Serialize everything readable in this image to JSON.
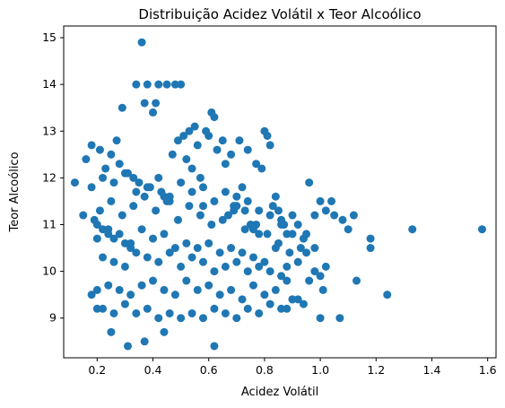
{
  "chart_data": {
    "type": "scatter",
    "title": "Distribuição Acidez Volátil x Teor Alcoólico",
    "xlabel": "Acidez Volátil",
    "ylabel": "Teor Alcoólico",
    "xlim": [
      0.08,
      1.63
    ],
    "ylim": [
      8.15,
      15.25
    ],
    "xticks": [
      0.2,
      0.4,
      0.6,
      0.8,
      1.0,
      1.2,
      1.4,
      1.6
    ],
    "xtick_labels": [
      "0.2",
      "0.4",
      "0.6",
      "0.8",
      "1.0",
      "1.2",
      "1.4",
      "1.6"
    ],
    "yticks": [
      9,
      10,
      11,
      12,
      13,
      14,
      15
    ],
    "ytick_labels": [
      "9",
      "10",
      "11",
      "12",
      "13",
      "14",
      "15"
    ],
    "grid": false,
    "marker_color": "#1f77b4",
    "series": [
      {
        "x": [
          0.36,
          0.34,
          0.38,
          0.42,
          0.45,
          0.48,
          0.5,
          0.37,
          0.41,
          0.4,
          0.29,
          0.61,
          0.62,
          0.65,
          0.6,
          0.63,
          0.59,
          0.55,
          0.53,
          0.51,
          0.56,
          0.49,
          0.47,
          0.52,
          0.54,
          0.57,
          0.66,
          0.68,
          0.71,
          0.74,
          0.8,
          0.81,
          0.82,
          0.77,
          0.79,
          0.18,
          0.16,
          0.21,
          0.23,
          0.25,
          0.27,
          0.28,
          0.31,
          0.33,
          0.35,
          0.39,
          0.43,
          0.44,
          0.46,
          0.58,
          0.12,
          0.15,
          0.19,
          0.2,
          0.22,
          0.24,
          0.26,
          0.3,
          0.32,
          0.67,
          0.69,
          0.7,
          0.72,
          0.73,
          0.75,
          0.76,
          0.78,
          0.83,
          0.84,
          0.85,
          0.86,
          0.87,
          0.88,
          0.9,
          0.92,
          0.95,
          0.96,
          0.98,
          1.0,
          1.02,
          1.04,
          1.05,
          1.08,
          1.1,
          1.12,
          1.18,
          1.33,
          1.58,
          1.18,
          0.96,
          0.98,
          1.0,
          1.02,
          1.01,
          0.95,
          0.92,
          0.9,
          0.88,
          1.13,
          1.24,
          1.07,
          1.0,
          0.62,
          0.31,
          0.37,
          0.44,
          0.25,
          0.2,
          0.18,
          0.22,
          0.26,
          0.3,
          0.34,
          0.38,
          0.42,
          0.46,
          0.5,
          0.54,
          0.58,
          0.62,
          0.66,
          0.7,
          0.74,
          0.78,
          0.82,
          0.86,
          0.9,
          0.94,
          0.2,
          0.24,
          0.28,
          0.32,
          0.36,
          0.4,
          0.44,
          0.48,
          0.52,
          0.56,
          0.6,
          0.64,
          0.68,
          0.72,
          0.76,
          0.8,
          0.84,
          0.88,
          0.92,
          0.22,
          0.26,
          0.3,
          0.34,
          0.38,
          0.42,
          0.46,
          0.5,
          0.54,
          0.58,
          0.62,
          0.66,
          0.7,
          0.74,
          0.78,
          0.82,
          0.86,
          0.2,
          0.24,
          0.28,
          0.32,
          0.36,
          0.4,
          0.44,
          0.48,
          0.52,
          0.56,
          0.6,
          0.64,
          0.68,
          0.72,
          0.76,
          0.8,
          0.84,
          0.88,
          0.21,
          0.25,
          0.29,
          0.33,
          0.37,
          0.41,
          0.45,
          0.49,
          0.53,
          0.57,
          0.61,
          0.65,
          0.69,
          0.73,
          0.77,
          0.81,
          0.85,
          0.89,
          0.93,
          0.18,
          0.22,
          0.26,
          0.3,
          0.34,
          0.38,
          0.42,
          0.46,
          0.5,
          0.54,
          0.58,
          0.62,
          0.66,
          0.7,
          0.74,
          0.78,
          0.82,
          0.86,
          0.9,
          0.94,
          0.98
        ],
        "y": [
          14.9,
          14.0,
          14.0,
          14.0,
          14.0,
          14.0,
          14.0,
          13.6,
          13.6,
          13.4,
          13.5,
          13.4,
          13.3,
          12.8,
          12.9,
          12.6,
          13.0,
          13.1,
          13.0,
          12.9,
          12.7,
          12.8,
          12.5,
          12.4,
          12.2,
          12.0,
          12.3,
          12.5,
          12.8,
          12.6,
          13.0,
          12.9,
          12.7,
          12.3,
          12.2,
          12.7,
          12.4,
          12.6,
          12.2,
          12.5,
          12.8,
          12.3,
          12.1,
          12.0,
          11.9,
          11.8,
          11.7,
          11.6,
          11.5,
          11.4,
          11.9,
          11.2,
          11.1,
          11.0,
          10.9,
          10.8,
          10.7,
          10.6,
          10.5,
          11.2,
          11.4,
          11.6,
          11.8,
          11.3,
          11.0,
          10.9,
          10.8,
          11.4,
          11.6,
          11.3,
          11.1,
          11.0,
          10.8,
          11.2,
          11.0,
          10.8,
          11.9,
          11.2,
          11.5,
          11.3,
          11.5,
          11.2,
          11.1,
          10.9,
          11.2,
          10.7,
          10.9,
          10.9,
          10.5,
          9.8,
          10.0,
          9.9,
          10.1,
          9.6,
          10.4,
          10.2,
          9.4,
          9.2,
          9.8,
          9.5,
          9.0,
          9.0,
          8.4,
          8.4,
          8.5,
          8.7,
          8.7,
          9.2,
          9.5,
          9.2,
          9.1,
          9.3,
          9.1,
          9.2,
          9.0,
          9.1,
          9.0,
          9.1,
          9.0,
          9.2,
          9.1,
          9.0,
          9.2,
          9.1,
          9.3,
          9.2,
          9.4,
          9.3,
          9.6,
          9.7,
          9.6,
          9.5,
          9.7,
          9.8,
          9.6,
          9.5,
          9.8,
          9.6,
          9.7,
          9.5,
          9.6,
          9.4,
          9.7,
          9.5,
          9.6,
          9.8,
          9.4,
          10.3,
          10.2,
          10.1,
          10.4,
          10.3,
          10.2,
          10.4,
          10.1,
          10.3,
          10.2,
          10.0,
          10.1,
          10.2,
          10.0,
          10.1,
          10.0,
          9.9,
          10.7,
          10.9,
          10.8,
          10.6,
          10.9,
          10.7,
          10.8,
          10.5,
          10.6,
          10.5,
          10.6,
          10.4,
          10.5,
          10.4,
          10.3,
          10.2,
          10.5,
          10.1,
          11.3,
          11.5,
          11.2,
          11.4,
          11.6,
          11.3,
          11.5,
          11.1,
          11.4,
          11.2,
          11.0,
          11.1,
          11.3,
          10.9,
          11.0,
          10.8,
          10.6,
          10.4,
          10.5,
          11.8,
          12.0,
          11.9,
          12.1,
          11.7,
          11.8,
          12.0,
          11.6,
          11.9,
          11.7,
          11.8,
          11.5,
          11.7,
          11.4,
          11.5,
          11.3,
          11.2,
          11.0,
          10.8,
          10.7,
          10.5
        ]
      }
    ]
  }
}
